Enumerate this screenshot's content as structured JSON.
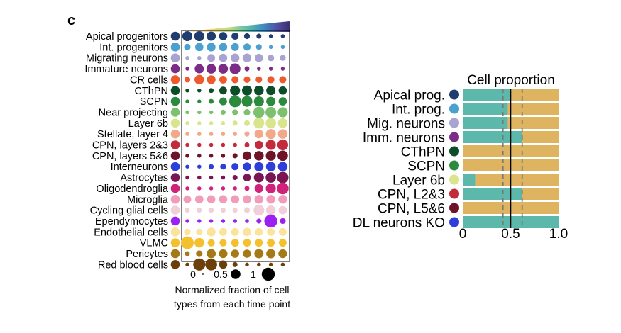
{
  "panel_label": "c",
  "colors": {
    "bar_teal": "#5bb8ab",
    "bar_gold": "#dfb461",
    "line": "#000000",
    "dashed": "#7a7a7a"
  },
  "chart_data": [
    {
      "type": "dot-matrix",
      "title": "",
      "legend": {
        "title_line1": "Normalized fraction of cell",
        "title_line2": "types from each time point",
        "entries": [
          {
            "label": "0",
            "value": 0
          },
          {
            "label": "0.5",
            "value": 0.5
          },
          {
            "label": "1",
            "value": 1
          }
        ]
      },
      "n_timepoints": 9,
      "rows": [
        {
          "label": "Apical progenitors",
          "color": "#1f3d6e",
          "values": [
            0.55,
            0.55,
            0.45,
            0.35,
            0.25,
            0.15,
            0.1,
            0.05,
            0.05
          ]
        },
        {
          "label": "Int. progenitors",
          "color": "#4aa0cf",
          "values": [
            0.2,
            0.35,
            0.4,
            0.35,
            0.3,
            0.25,
            0.15,
            0.05,
            0.05
          ]
        },
        {
          "label": "Migrating neurons",
          "color": "#a9a3d2",
          "values": [
            0.05,
            0.05,
            0.3,
            0.35,
            0.4,
            0.4,
            0.35,
            0.2,
            0.15
          ]
        },
        {
          "label": "Immature neurons",
          "color": "#7b2c86",
          "values": [
            0.05,
            0.45,
            0.5,
            0.5,
            0.65,
            0.1,
            0.05,
            0.05,
            0.05
          ]
        },
        {
          "label": "CR cells",
          "color": "#ee5a2b",
          "values": [
            0.15,
            0.5,
            0.4,
            0.3,
            0.25,
            0.2,
            0.2,
            0.25,
            0.25
          ]
        },
        {
          "label": "CThPN",
          "color": "#0d4d2a",
          "values": [
            0.05,
            0.05,
            0.1,
            0.3,
            0.55,
            0.55,
            0.5,
            0.45,
            0.35
          ]
        },
        {
          "label": "SCPN",
          "color": "#2b8a3e",
          "values": [
            0.05,
            0.05,
            0.1,
            0.3,
            0.8,
            0.65,
            0.55,
            0.45,
            0.35
          ]
        },
        {
          "label": "Near projecting",
          "color": "#7cc16e",
          "values": [
            0.05,
            0.05,
            0.05,
            0.1,
            0.15,
            0.2,
            0.7,
            0.65,
            0.55
          ]
        },
        {
          "label": "Layer 6b",
          "color": "#d8e58c",
          "values": [
            0.05,
            0.05,
            0.05,
            0.05,
            0.1,
            0.15,
            0.65,
            0.6,
            0.5
          ]
        },
        {
          "label": "Stellate, layer 4",
          "color": "#f2a98a",
          "values": [
            0.05,
            0.05,
            0.05,
            0.05,
            0.05,
            0.1,
            0.4,
            0.55,
            0.5
          ]
        },
        {
          "label": "CPN, layers 2&3",
          "color": "#c32a3b",
          "values": [
            0.05,
            0.05,
            0.05,
            0.05,
            0.05,
            0.1,
            0.35,
            0.55,
            0.65
          ]
        },
        {
          "label": "CPN, layers 5&6",
          "color": "#6e1429",
          "values": [
            0.05,
            0.05,
            0.05,
            0.05,
            0.1,
            0.4,
            0.5,
            0.55,
            0.6
          ]
        },
        {
          "label": "Interneurons",
          "color": "#2d3fd8",
          "values": [
            0.05,
            0.05,
            0.1,
            0.15,
            0.25,
            0.35,
            0.45,
            0.5,
            0.5
          ]
        },
        {
          "label": "Astrocytes",
          "color": "#7b1655",
          "values": [
            0.05,
            0.05,
            0.05,
            0.05,
            0.1,
            0.3,
            0.55,
            0.6,
            0.75
          ]
        },
        {
          "label": "Oligodendroglia",
          "color": "#d0227b",
          "values": [
            0.05,
            0.05,
            0.05,
            0.05,
            0.05,
            0.1,
            0.4,
            0.55,
            0.8
          ]
        },
        {
          "label": "Microglia",
          "color": "#f29bbb",
          "values": [
            0.3,
            0.35,
            0.35,
            0.35,
            0.35,
            0.35,
            0.4,
            0.4,
            0.4
          ]
        },
        {
          "label": "Cycling glial cells",
          "color": "#f1cfd8",
          "values": [
            0.1,
            0.1,
            0.1,
            0.1,
            0.1,
            0.15,
            0.65,
            0.5,
            0.35
          ]
        },
        {
          "label": "Ependymocytes",
          "color": "#9b21f2",
          "values": [
            0.05,
            0.05,
            0.05,
            0.05,
            0.05,
            0.05,
            0.1,
            1.0,
            0.15
          ]
        },
        {
          "label": "Endothelial cells",
          "color": "#fbe39a",
          "values": [
            0.2,
            0.2,
            0.4,
            0.3,
            0.3,
            0.35,
            0.3,
            0.3,
            0.3
          ]
        },
        {
          "label": "VLMC",
          "color": "#f5c02e",
          "values": [
            0.95,
            0.5,
            0.25,
            0.25,
            0.3,
            0.3,
            0.3,
            0.3,
            0.3
          ]
        },
        {
          "label": "Pericytes",
          "color": "#a57a16",
          "values": [
            0.1,
            0.2,
            0.45,
            0.4,
            0.35,
            0.35,
            0.45,
            0.45,
            0.4
          ]
        },
        {
          "label": "Red blood cells",
          "color": "#6b3e0a",
          "values": [
            0.05,
            0.85,
            0.8,
            0.35,
            0.1,
            0.05,
            0.05,
            0.05,
            0.05
          ]
        }
      ]
    },
    {
      "type": "bar",
      "stacked": true,
      "orientation": "horizontal",
      "title": "Cell proportion",
      "xlim": [
        0,
        1.0
      ],
      "xticks": [
        {
          "value": 0,
          "label": "0"
        },
        {
          "value": 0.5,
          "label": "0.5"
        },
        {
          "value": 1.0,
          "label": "1.0"
        }
      ],
      "reference_line": 0.5,
      "dashed_lines": [
        0.42,
        0.62
      ],
      "categories": [
        {
          "label": "Apical prog.",
          "color": "#1f3d6e"
        },
        {
          "label": "Int. prog.",
          "color": "#4aa0cf"
        },
        {
          "label": "Mig. neurons",
          "color": "#a9a3d2"
        },
        {
          "label": "Imm. neurons",
          "color": "#7b2c86"
        },
        {
          "label": "CThPN",
          "color": "#0d4d2a"
        },
        {
          "label": "SCPN",
          "color": "#2b8a3e"
        },
        {
          "label": "Layer 6b",
          "color": "#d8e58c"
        },
        {
          "label": "CPN, L2&3",
          "color": "#c32a3b"
        },
        {
          "label": "CPN, L5&6",
          "color": "#6e1429"
        },
        {
          "label": "DL neurons KO",
          "color": "#2d3fd8"
        }
      ],
      "series": [
        {
          "name": "teal",
          "values": [
            0.5,
            0.47,
            0.47,
            0.62,
            0.0,
            0.0,
            0.13,
            0.62,
            0.0,
            1.0
          ]
        },
        {
          "name": "gold",
          "values": [
            0.5,
            0.53,
            0.53,
            0.38,
            1.0,
            1.0,
            0.87,
            0.38,
            1.0,
            0.0
          ]
        }
      ]
    }
  ]
}
